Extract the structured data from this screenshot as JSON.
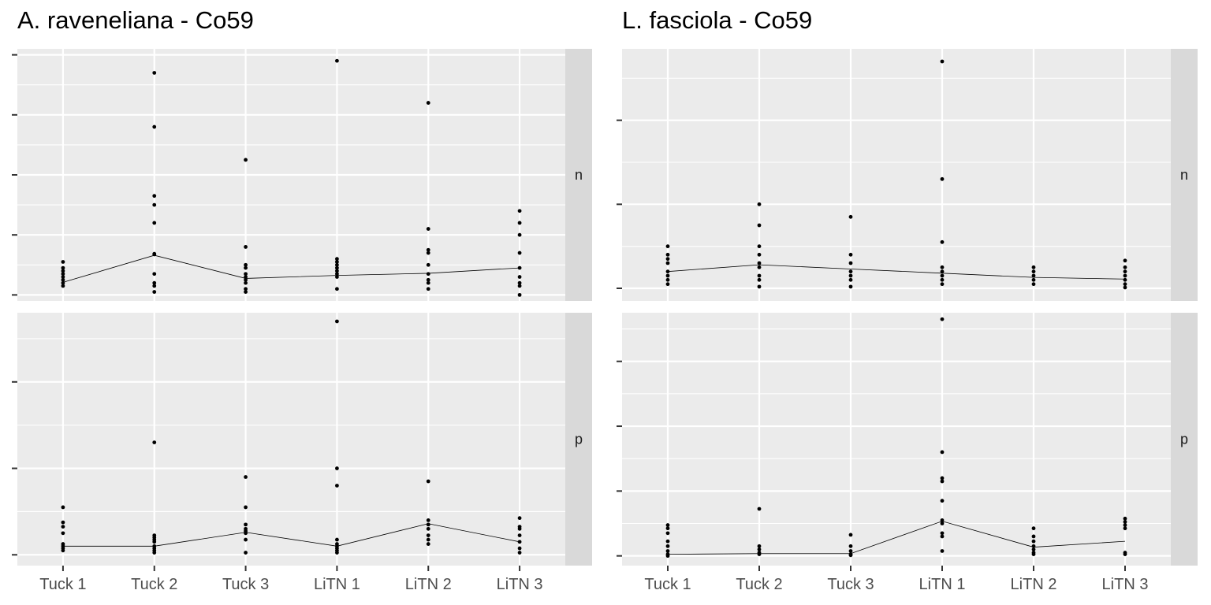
{
  "chart_data": [
    {
      "type": "scatter",
      "title": "A. raveneliana - Co59",
      "categories": [
        "Tuck 1",
        "Tuck 2",
        "Tuck 3",
        "LiTN 1",
        "LiTN 2",
        "LiTN 3"
      ],
      "facets": [
        {
          "strip_label": "n",
          "ylim": [
            -2,
            82
          ],
          "grid_major": [
            0,
            20,
            40,
            60,
            80
          ],
          "points": [
            [
              3,
              4,
              5,
              6,
              7,
              8,
              9,
              11
            ],
            [
              1,
              3,
              4,
              7,
              13.5,
              13.7,
              24,
              30,
              33,
              56,
              74
            ],
            [
              1,
              2,
              4,
              5,
              6,
              7,
              9,
              10,
              16,
              45
            ],
            [
              2,
              6,
              7,
              8,
              9,
              10,
              11,
              12,
              78
            ],
            [
              2,
              4,
              5,
              7,
              10,
              14,
              15,
              22,
              64
            ],
            [
              0,
              3,
              4,
              6,
              9,
              14,
              20,
              24,
              28
            ]
          ],
          "line": [
            4.2,
            13.2,
            5.5,
            6.5,
            7.2,
            9.0
          ]
        },
        {
          "strip_label": "p",
          "ylim": [
            -0.25,
            5.6
          ],
          "grid_major": [
            0,
            2,
            4
          ],
          "points": [
            [
              0.1,
              0.15,
              0.2,
              0.25,
              0.5,
              0.65,
              0.75,
              1.1
            ],
            [
              0.05,
              0.1,
              0.15,
              0.2,
              0.3,
              0.35,
              0.4,
              0.45,
              2.6
            ],
            [
              0.05,
              0.35,
              0.5,
              0.55,
              0.6,
              0.7,
              1.1,
              1.8
            ],
            [
              0.05,
              0.1,
              0.15,
              0.2,
              0.25,
              0.35,
              1.6,
              2.0,
              5.4
            ],
            [
              0.25,
              0.35,
              0.45,
              0.6,
              0.7,
              0.8,
              1.7
            ],
            [
              0.05,
              0.15,
              0.3,
              0.45,
              0.6,
              0.65,
              0.85
            ]
          ],
          "line": [
            0.2,
            0.2,
            0.52,
            0.2,
            0.72,
            0.3
          ]
        }
      ]
    },
    {
      "type": "scatter",
      "title": "L. fasciola - Co59",
      "categories": [
        "Tuck 1",
        "Tuck 2",
        "Tuck 3",
        "LiTN 1",
        "LiTN 2",
        "LiTN 3"
      ],
      "facets": [
        {
          "strip_label": "n",
          "ylim": [
            -1.5,
            28.5
          ],
          "grid_major": [
            0,
            10,
            20
          ],
          "points": [
            [
              0.5,
              1,
              1.5,
              2,
              3,
              3.5,
              4,
              5
            ],
            [
              0.2,
              1,
              1.5,
              2.5,
              3,
              4,
              5,
              7.5,
              10
            ],
            [
              0.2,
              1,
              1.5,
              2,
              3,
              4,
              8.5
            ],
            [
              0.5,
              1,
              1.5,
              2,
              2.5,
              5.5,
              13,
              27
            ],
            [
              0.5,
              1,
              1.5,
              2,
              2.5
            ],
            [
              0.1,
              0.5,
              1,
              1.5,
              2,
              2.5,
              3.3
            ]
          ],
          "line": [
            2.0,
            2.8,
            2.3,
            1.8,
            1.3,
            1.1
          ]
        },
        {
          "strip_label": "p",
          "ylim": [
            -0.3,
            7.5
          ],
          "grid_major": [
            0,
            2,
            4,
            6
          ],
          "points": [
            [
              0,
              0.05,
              0.15,
              0.3,
              0.45,
              0.7,
              0.85,
              0.95
            ],
            [
              0.05,
              0.1,
              0.2,
              0.3,
              1.45
            ],
            [
              0.02,
              0.05,
              0.15,
              0.3,
              0.65
            ],
            [
              0.15,
              0.6,
              0.7,
              1.0,
              1.1,
              1.7,
              2.3,
              2.4,
              3.2,
              7.3
            ],
            [
              0.05,
              0.1,
              0.2,
              0.3,
              0.45,
              0.6,
              0.85
            ],
            [
              0.05,
              0.1,
              0.85,
              0.95,
              1.05,
              1.15
            ]
          ],
          "line": [
            0.05,
            0.07,
            0.07,
            1.07,
            0.27,
            0.45
          ]
        }
      ]
    }
  ]
}
